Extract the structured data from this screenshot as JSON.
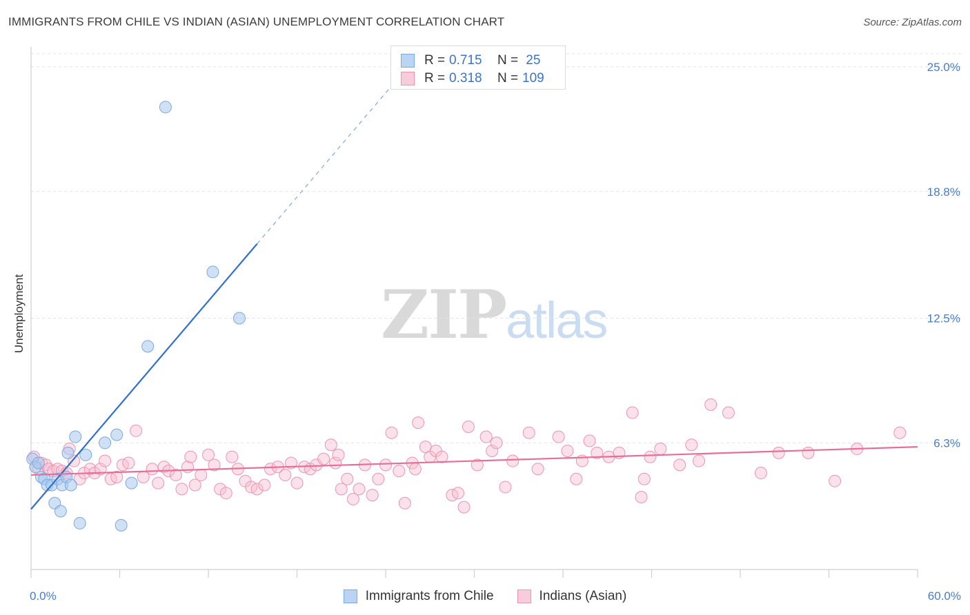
{
  "title": "IMMIGRANTS FROM CHILE VS INDIAN (ASIAN) UNEMPLOYMENT CORRELATION CHART",
  "source": "Source: ZipAtlas.com",
  "watermark": {
    "part1": "ZIP",
    "part2": "atlas"
  },
  "colors": {
    "blue_fill": "#a9c8ef",
    "blue_stroke": "#7aa8e0",
    "blue_line": "#2f6fd0",
    "pink_fill": "#f7bfd0",
    "pink_stroke": "#ec93b0",
    "pink_line": "#e46f98",
    "accent_text": "#3b73c8",
    "grid": "#e3e3e3"
  },
  "legend_top": [
    {
      "r_label": "R =",
      "r_value": "0.715",
      "n_label": "N =",
      "n_value": " 25"
    },
    {
      "r_label": "R =",
      "r_value": "0.318",
      "n_label": "N =",
      "n_value": "109"
    }
  ],
  "chart_data": {
    "type": "scatter",
    "title": "IMMIGRANTS FROM CHILE VS INDIAN (ASIAN) UNEMPLOYMENT CORRELATION CHART",
    "xlabel": "",
    "ylabel": "Unemployment",
    "xlim": [
      0,
      60
    ],
    "ylim": [
      0,
      25
    ],
    "x_tick_labels": [
      "0.0%",
      "60.0%"
    ],
    "y_ticks": [
      6.3,
      12.5,
      18.8,
      25.0
    ],
    "y_tick_labels": [
      "6.3%",
      "12.5%",
      "18.8%",
      "25.0%"
    ],
    "grid": true,
    "legend_position": "bottom",
    "series": [
      {
        "name": "Immigrants from Chile",
        "color": "#a9c8ef",
        "r": 0.715,
        "n": 25,
        "trend": {
          "x0": 0,
          "y0": 3.0,
          "x1": 15.3,
          "y1": 16.2,
          "dashed_to_x": 25
        },
        "points": [
          [
            0.1,
            5.5
          ],
          [
            0.3,
            5.1
          ],
          [
            0.5,
            5.3
          ],
          [
            0.7,
            4.6
          ],
          [
            0.9,
            4.5
          ],
          [
            1.1,
            4.2
          ],
          [
            1.4,
            4.2
          ],
          [
            1.6,
            3.3
          ],
          [
            1.8,
            4.5
          ],
          [
            2.0,
            2.9
          ],
          [
            2.1,
            4.2
          ],
          [
            2.4,
            4.6
          ],
          [
            2.7,
            4.2
          ],
          [
            2.5,
            5.8
          ],
          [
            3.0,
            6.6
          ],
          [
            3.3,
            2.3
          ],
          [
            3.7,
            5.7
          ],
          [
            5.0,
            6.3
          ],
          [
            5.8,
            6.7
          ],
          [
            6.1,
            2.2
          ],
          [
            6.8,
            4.3
          ],
          [
            7.9,
            11.1
          ],
          [
            9.1,
            23.0
          ],
          [
            12.3,
            14.8
          ],
          [
            14.1,
            12.5
          ]
        ]
      },
      {
        "name": "Indians (Asian)",
        "color": "#f7bfd0",
        "r": 0.318,
        "n": 109,
        "trend": {
          "x0": 0,
          "y0": 4.7,
          "x1": 60,
          "y1": 6.1
        },
        "points": [
          [
            0.2,
            5.6
          ],
          [
            0.5,
            5.0
          ],
          [
            0.7,
            5.3
          ],
          [
            1.0,
            5.2
          ],
          [
            1.2,
            5.0
          ],
          [
            1.5,
            4.9
          ],
          [
            1.8,
            5.0
          ],
          [
            2.1,
            4.9
          ],
          [
            2.4,
            4.8
          ],
          [
            2.6,
            6.0
          ],
          [
            2.9,
            5.4
          ],
          [
            3.3,
            4.5
          ],
          [
            3.6,
            4.8
          ],
          [
            4.0,
            5.0
          ],
          [
            4.3,
            4.8
          ],
          [
            4.7,
            5.0
          ],
          [
            5.0,
            5.4
          ],
          [
            5.4,
            4.5
          ],
          [
            5.8,
            4.6
          ],
          [
            6.2,
            5.2
          ],
          [
            6.6,
            5.3
          ],
          [
            7.1,
            6.9
          ],
          [
            7.6,
            4.6
          ],
          [
            8.2,
            5.0
          ],
          [
            8.6,
            4.3
          ],
          [
            9.0,
            5.1
          ],
          [
            9.3,
            4.9
          ],
          [
            9.8,
            4.7
          ],
          [
            10.2,
            4.0
          ],
          [
            10.6,
            5.1
          ],
          [
            11.1,
            4.2
          ],
          [
            11.5,
            4.7
          ],
          [
            12.0,
            5.7
          ],
          [
            12.4,
            5.2
          ],
          [
            12.8,
            4.0
          ],
          [
            13.2,
            3.8
          ],
          [
            13.6,
            5.6
          ],
          [
            14.0,
            5.0
          ],
          [
            14.5,
            4.4
          ],
          [
            14.9,
            4.1
          ],
          [
            15.3,
            4.0
          ],
          [
            15.8,
            4.2
          ],
          [
            16.2,
            5.0
          ],
          [
            16.7,
            5.1
          ],
          [
            17.2,
            4.7
          ],
          [
            17.6,
            5.3
          ],
          [
            18.0,
            4.3
          ],
          [
            18.5,
            5.1
          ],
          [
            18.9,
            5.0
          ],
          [
            19.3,
            5.2
          ],
          [
            19.8,
            5.5
          ],
          [
            20.3,
            6.2
          ],
          [
            20.6,
            5.3
          ],
          [
            21.0,
            4.0
          ],
          [
            21.4,
            4.5
          ],
          [
            21.8,
            3.5
          ],
          [
            22.2,
            4.0
          ],
          [
            22.6,
            5.2
          ],
          [
            23.1,
            3.7
          ],
          [
            23.5,
            4.5
          ],
          [
            24.0,
            5.2
          ],
          [
            24.4,
            6.8
          ],
          [
            24.9,
            4.9
          ],
          [
            25.3,
            3.3
          ],
          [
            25.8,
            5.3
          ],
          [
            26.2,
            7.3
          ],
          [
            26.7,
            6.1
          ],
          [
            27.0,
            5.6
          ],
          [
            27.4,
            5.9
          ],
          [
            27.8,
            5.6
          ],
          [
            28.5,
            3.7
          ],
          [
            28.9,
            3.8
          ],
          [
            29.3,
            3.1
          ],
          [
            29.6,
            7.1
          ],
          [
            30.2,
            5.2
          ],
          [
            30.8,
            6.6
          ],
          [
            31.2,
            5.9
          ],
          [
            32.1,
            4.1
          ],
          [
            32.6,
            5.4
          ],
          [
            33.7,
            6.8
          ],
          [
            34.3,
            5.0
          ],
          [
            35.7,
            6.6
          ],
          [
            36.3,
            5.9
          ],
          [
            36.9,
            4.5
          ],
          [
            37.3,
            5.4
          ],
          [
            37.8,
            6.4
          ],
          [
            38.3,
            5.8
          ],
          [
            39.1,
            5.6
          ],
          [
            39.8,
            5.8
          ],
          [
            40.7,
            7.8
          ],
          [
            41.3,
            3.6
          ],
          [
            41.5,
            4.5
          ],
          [
            41.9,
            5.6
          ],
          [
            42.6,
            6.0
          ],
          [
            43.9,
            5.2
          ],
          [
            44.7,
            6.2
          ],
          [
            45.2,
            5.4
          ],
          [
            46.0,
            8.2
          ],
          [
            47.2,
            7.8
          ],
          [
            49.4,
            4.8
          ],
          [
            50.6,
            5.8
          ],
          [
            52.6,
            5.8
          ],
          [
            54.4,
            4.4
          ],
          [
            55.9,
            6.0
          ],
          [
            58.8,
            6.8
          ],
          [
            20.8,
            5.7
          ],
          [
            31.5,
            6.3
          ],
          [
            10.8,
            5.6
          ],
          [
            26.0,
            5.0
          ]
        ]
      }
    ]
  },
  "legend_bottom": [
    {
      "label": "Immigrants from Chile"
    },
    {
      "label": "Indians (Asian)"
    }
  ]
}
